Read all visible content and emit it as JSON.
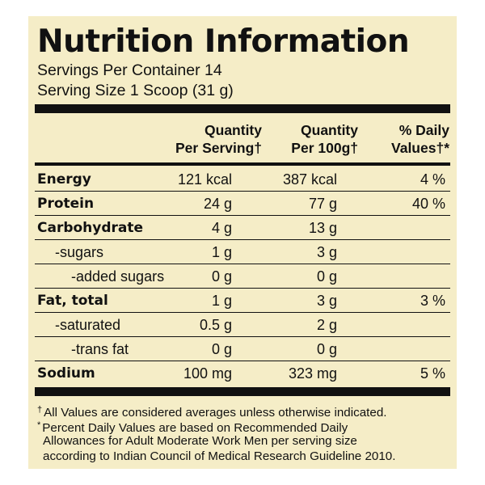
{
  "panel": {
    "title": "Nutrition Information",
    "servings_per_container": "Servings Per Container 14",
    "serving_size": "Serving Size 1 Scoop (31 g)"
  },
  "columns": {
    "per_serving": [
      "Quantity",
      "Per Serving†"
    ],
    "per_100g": [
      "Quantity",
      "Per 100g†"
    ],
    "daily_values": [
      "% Daily",
      "Values†*"
    ]
  },
  "rows": [
    {
      "label": "Energy",
      "per_serving": "121 kcal",
      "per_100g": "387 kcal",
      "daily": "4 %"
    },
    {
      "label": "Protein",
      "per_serving": "24 g",
      "per_100g": "77 g",
      "daily": "40 %"
    },
    {
      "label": "Carbohydrate",
      "per_serving": "4 g",
      "per_100g": "13 g",
      "daily": ""
    },
    {
      "label": "-sugars",
      "per_serving": "1 g",
      "per_100g": "3 g",
      "daily": ""
    },
    {
      "label": "-added sugars",
      "per_serving": "0 g",
      "per_100g": "0 g",
      "daily": ""
    },
    {
      "label": "Fat, total",
      "per_serving": "1 g",
      "per_100g": "3 g",
      "daily": "3 %"
    },
    {
      "label": "-saturated",
      "per_serving": "0.5 g",
      "per_100g": "2 g",
      "daily": ""
    },
    {
      "label": "-trans fat",
      "per_serving": "0 g",
      "per_100g": "0 g",
      "daily": ""
    },
    {
      "label": "Sodium",
      "per_serving": "100 mg",
      "per_100g": "323 mg",
      "daily": "5 %"
    }
  ],
  "footnotes": {
    "dagger_symbol": "†",
    "dagger_text": "All Values are considered averages unless otherwise indicated.",
    "star_symbol": "*",
    "star_line1": "Percent Daily Values are based on Recommended Daily",
    "star_line2": "Allowances for Adult Moderate Work Men per serving size",
    "star_line3": "according to Indian Council of Medical Research Guideline 2010."
  }
}
